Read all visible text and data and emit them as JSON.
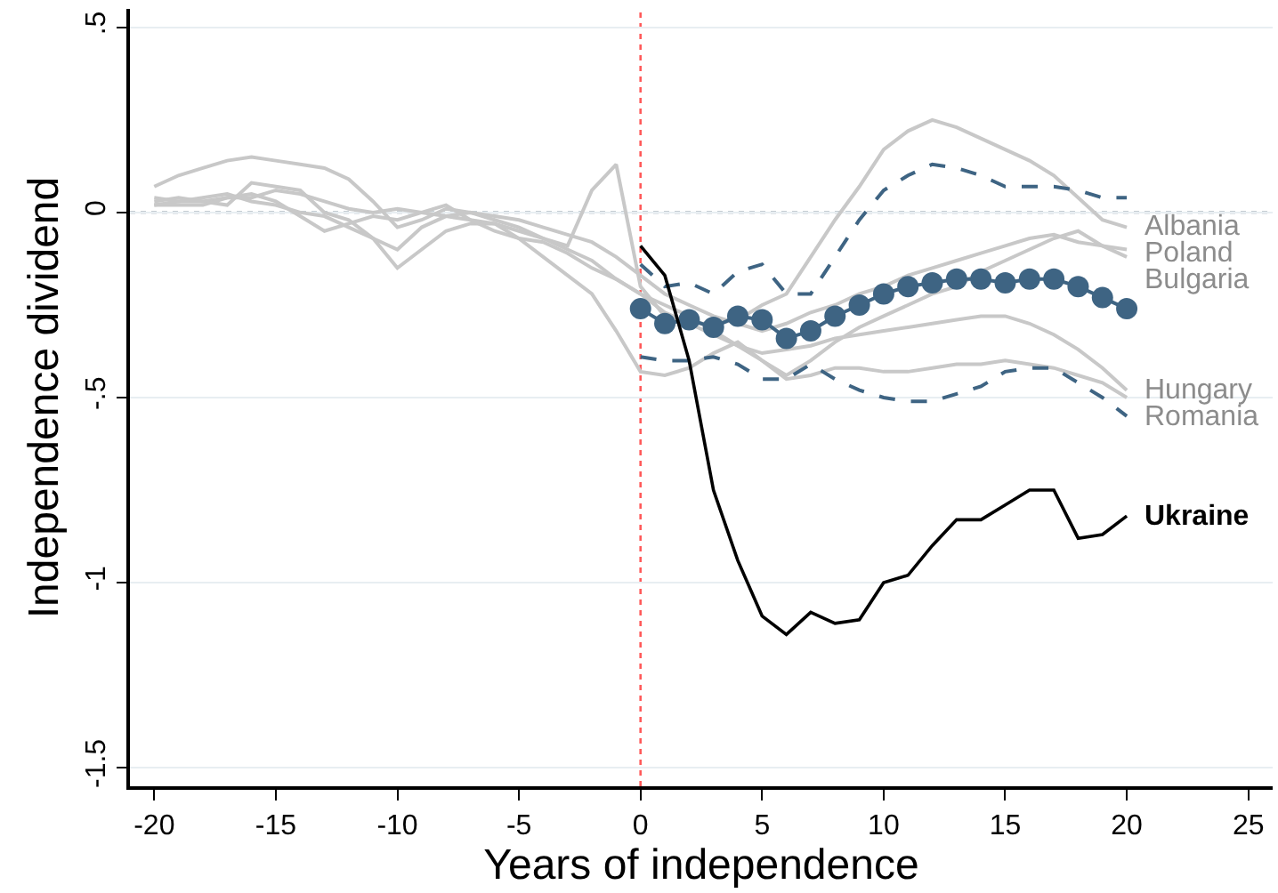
{
  "chart_data": {
    "type": "line",
    "xlabel": "Years of independence",
    "ylabel": "Independence dividend",
    "xlim": [
      -21,
      26
    ],
    "xticks": [
      -20,
      -15,
      -10,
      -5,
      0,
      5,
      10,
      15,
      20,
      25
    ],
    "ylim": [
      -1.55,
      0.55
    ],
    "yticks": [
      {
        "value": 0.5,
        "label": ".5"
      },
      0,
      {
        "value": -0.5,
        "label": "-.5"
      },
      -1,
      {
        "value": -1.5,
        "label": "-1.5"
      }
    ],
    "grid": "y",
    "legend": false,
    "ref_lines": [
      {
        "axis": "y",
        "value": 0,
        "color": "#8a9ba8",
        "line_style": "dotted"
      },
      {
        "axis": "x",
        "value": 0,
        "color": "#ff5a5a",
        "line_style": "dotted"
      }
    ],
    "series": [
      {
        "name": "Albania",
        "color": "#c8c8c8",
        "x": [
          -20,
          -19,
          -18,
          -17,
          -16,
          -15,
          -14,
          -13,
          -12,
          -11,
          -10,
          -9,
          -8,
          -7,
          -6,
          -5,
          -4,
          -3,
          -2,
          -1,
          0,
          1,
          2,
          3,
          4,
          5,
          6,
          7,
          8,
          9,
          10,
          11,
          12,
          13,
          14,
          15,
          16,
          17,
          18,
          19,
          20
        ],
        "values": [
          0.03,
          0.04,
          0.03,
          0.04,
          0.04,
          0.06,
          0.05,
          0.03,
          0.01,
          0.0,
          0.01,
          0.0,
          -0.01,
          -0.02,
          -0.03,
          -0.05,
          -0.07,
          -0.09,
          0.06,
          0.13,
          -0.2,
          -0.28,
          -0.3,
          -0.3,
          -0.29,
          -0.25,
          -0.22,
          -0.12,
          -0.02,
          0.07,
          0.17,
          0.22,
          0.25,
          0.23,
          0.2,
          0.17,
          0.14,
          0.1,
          0.04,
          -0.02,
          -0.04
        ]
      },
      {
        "name": "Poland",
        "color": "#c8c8c8",
        "x": [
          -20,
          -19,
          -18,
          -17,
          -16,
          -15,
          -14,
          -13,
          -12,
          -11,
          -10,
          -9,
          -8,
          -7,
          -6,
          -5,
          -4,
          -3,
          -2,
          -1,
          0,
          1,
          2,
          3,
          4,
          5,
          6,
          7,
          8,
          9,
          10,
          11,
          12,
          13,
          14,
          15,
          16,
          17,
          18,
          19,
          20
        ],
        "values": [
          0.07,
          0.1,
          0.12,
          0.14,
          0.15,
          0.14,
          0.13,
          0.12,
          0.09,
          0.03,
          -0.04,
          -0.02,
          0.01,
          0.0,
          -0.01,
          -0.02,
          -0.04,
          -0.06,
          -0.08,
          -0.12,
          -0.17,
          -0.22,
          -0.25,
          -0.28,
          -0.3,
          -0.32,
          -0.3,
          -0.27,
          -0.25,
          -0.22,
          -0.2,
          -0.17,
          -0.15,
          -0.13,
          -0.11,
          -0.09,
          -0.07,
          -0.06,
          -0.08,
          -0.09,
          -0.1
        ]
      },
      {
        "name": "Bulgaria",
        "color": "#c8c8c8",
        "x": [
          -20,
          -19,
          -18,
          -17,
          -16,
          -15,
          -14,
          -13,
          -12,
          -11,
          -10,
          -9,
          -8,
          -7,
          -6,
          -5,
          -4,
          -3,
          -2,
          -1,
          0,
          1,
          2,
          3,
          4,
          5,
          6,
          7,
          8,
          9,
          10,
          11,
          12,
          13,
          14,
          15,
          16,
          17,
          18,
          19,
          20
        ],
        "values": [
          0.02,
          0.03,
          0.03,
          0.02,
          0.08,
          0.07,
          0.06,
          0.0,
          -0.02,
          -0.07,
          -0.15,
          -0.1,
          -0.05,
          -0.03,
          -0.03,
          -0.07,
          -0.12,
          -0.17,
          -0.22,
          -0.32,
          -0.43,
          -0.44,
          -0.42,
          -0.38,
          -0.35,
          -0.4,
          -0.44,
          -0.4,
          -0.35,
          -0.31,
          -0.28,
          -0.25,
          -0.22,
          -0.2,
          -0.16,
          -0.13,
          -0.1,
          -0.07,
          -0.05,
          -0.09,
          -0.12
        ]
      },
      {
        "name": "Hungary",
        "color": "#c8c8c8",
        "x": [
          -20,
          -19,
          -18,
          -17,
          -16,
          -15,
          -14,
          -13,
          -12,
          -11,
          -10,
          -9,
          -8,
          -7,
          -6,
          -5,
          -4,
          -3,
          -2,
          -1,
          0,
          1,
          2,
          3,
          4,
          5,
          6,
          7,
          8,
          9,
          10,
          11,
          12,
          13,
          14,
          15,
          16,
          17,
          18,
          19,
          20
        ],
        "values": [
          0.02,
          0.02,
          0.02,
          0.04,
          0.05,
          0.03,
          -0.01,
          -0.05,
          -0.03,
          -0.01,
          -0.02,
          0.0,
          0.02,
          -0.02,
          -0.05,
          -0.07,
          -0.08,
          -0.11,
          -0.15,
          -0.18,
          -0.22,
          -0.27,
          -0.3,
          -0.33,
          -0.36,
          -0.38,
          -0.37,
          -0.36,
          -0.34,
          -0.33,
          -0.32,
          -0.31,
          -0.3,
          -0.29,
          -0.28,
          -0.28,
          -0.3,
          -0.33,
          -0.37,
          -0.42,
          -0.48
        ]
      },
      {
        "name": "Romania",
        "color": "#c8c8c8",
        "x": [
          -20,
          -19,
          -18,
          -17,
          -16,
          -15,
          -14,
          -13,
          -12,
          -11,
          -10,
          -9,
          -8,
          -7,
          -6,
          -5,
          -4,
          -3,
          -2,
          -1,
          0,
          1,
          2,
          3,
          4,
          5,
          6,
          7,
          8,
          9,
          10,
          11,
          12,
          13,
          14,
          15,
          16,
          17,
          18,
          19,
          20
        ],
        "values": [
          0.04,
          0.03,
          0.04,
          0.05,
          0.03,
          0.02,
          0.0,
          -0.01,
          -0.04,
          -0.07,
          -0.1,
          -0.04,
          -0.01,
          0.0,
          -0.02,
          -0.04,
          -0.07,
          -0.1,
          -0.13,
          -0.18,
          -0.22,
          -0.25,
          -0.28,
          -0.32,
          -0.36,
          -0.4,
          -0.45,
          -0.44,
          -0.42,
          -0.42,
          -0.43,
          -0.43,
          -0.42,
          -0.41,
          -0.41,
          -0.4,
          -0.41,
          -0.42,
          -0.44,
          -0.46,
          -0.5
        ]
      },
      {
        "color": "#3e6483",
        "line_style": "dashed",
        "x": [
          0,
          1,
          2,
          3,
          4,
          5,
          6,
          7,
          8,
          9,
          10,
          11,
          12,
          13,
          14,
          15,
          16,
          17,
          18,
          19,
          20
        ],
        "values": [
          -0.14,
          -0.2,
          -0.19,
          -0.22,
          -0.16,
          -0.14,
          -0.22,
          -0.22,
          -0.12,
          -0.02,
          0.06,
          0.1,
          0.13,
          0.12,
          0.1,
          0.07,
          0.07,
          0.07,
          0.06,
          0.04,
          0.04
        ]
      },
      {
        "color": "#3e6483",
        "line_style": "dashed",
        "x": [
          0,
          1,
          2,
          3,
          4,
          5,
          6,
          7,
          8,
          9,
          10,
          11,
          12,
          13,
          14,
          15,
          16,
          17,
          18,
          19,
          20
        ],
        "values": [
          -0.39,
          -0.4,
          -0.4,
          -0.39,
          -0.41,
          -0.45,
          -0.45,
          -0.41,
          -0.45,
          -0.48,
          -0.5,
          -0.51,
          -0.51,
          -0.49,
          -0.47,
          -0.43,
          -0.42,
          -0.42,
          -0.46,
          -0.5,
          -0.55
        ]
      },
      {
        "color": "#3e6483",
        "marker": "circle",
        "x": [
          0,
          1,
          2,
          3,
          4,
          5,
          6,
          7,
          8,
          9,
          10,
          11,
          12,
          13,
          14,
          15,
          16,
          17,
          18,
          19,
          20
        ],
        "values": [
          -0.26,
          -0.3,
          -0.29,
          -0.31,
          -0.28,
          -0.29,
          -0.34,
          -0.32,
          -0.28,
          -0.25,
          -0.22,
          -0.2,
          -0.19,
          -0.18,
          -0.18,
          -0.19,
          -0.18,
          -0.18,
          -0.2,
          -0.23,
          -0.26
        ]
      },
      {
        "name": "Ukraine",
        "color": "#000000",
        "x": [
          0,
          1,
          2,
          3,
          4,
          5,
          6,
          7,
          8,
          9,
          10,
          11,
          12,
          13,
          14,
          15,
          16,
          17,
          18,
          19,
          20
        ],
        "values": [
          -0.09,
          -0.17,
          -0.4,
          -0.75,
          -0.94,
          -1.09,
          -1.14,
          -1.08,
          -1.11,
          -1.1,
          -1.0,
          -0.98,
          -0.9,
          -0.83,
          -0.83,
          -0.79,
          -0.75,
          -0.75,
          -0.88,
          -0.87,
          -0.82
        ]
      }
    ]
  }
}
